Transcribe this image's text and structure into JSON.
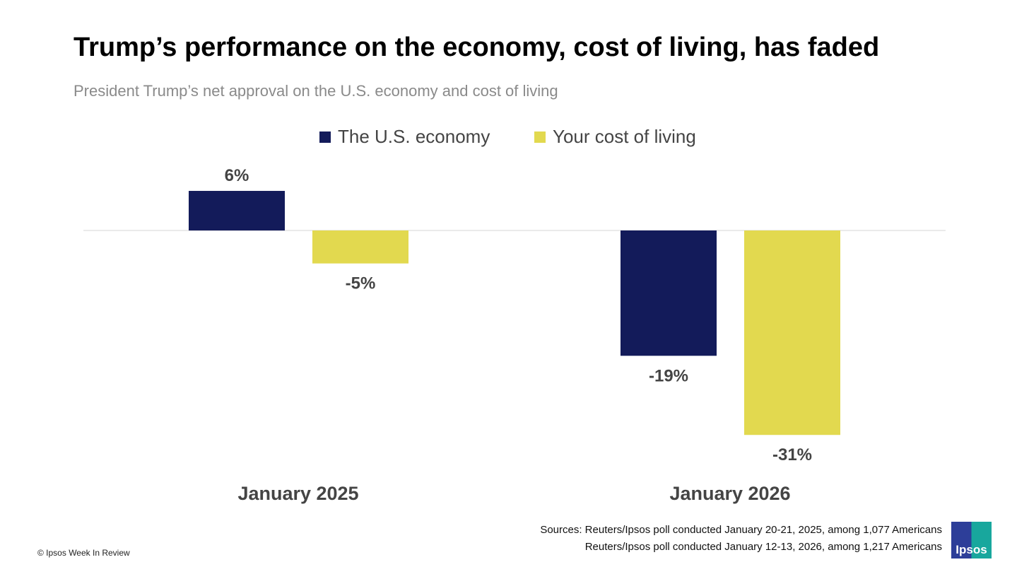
{
  "title": "Trump’s performance on the economy, cost of living, has faded",
  "subtitle": "President Trump’s net approval on the U.S. economy and cost of living",
  "colors": {
    "economy": "#131b5a",
    "cost": "#e2d94f"
  },
  "chart_data": {
    "type": "bar",
    "categories": [
      "January 2025",
      "January 2026"
    ],
    "series": [
      {
        "name": "The U.S. economy",
        "values": [
          6,
          -19
        ],
        "labels": [
          "6%",
          "-19%"
        ]
      },
      {
        "name": "Your cost of living",
        "values": [
          -5,
          -31
        ],
        "labels": [
          "-5%",
          "-31%"
        ]
      }
    ],
    "ylim": [
      -34,
      9
    ],
    "legend": "top-center",
    "grid": false
  },
  "sources": [
    "Sources: Reuters/Ipsos poll conducted January 20-21, 2025, among  1,077 Americans",
    "Reuters/Ipsos poll conducted January 12-13, 2026, among 1,217 Americans"
  ],
  "copyright": "© Ipsos Week In Review",
  "logo_text": "Ipsos"
}
